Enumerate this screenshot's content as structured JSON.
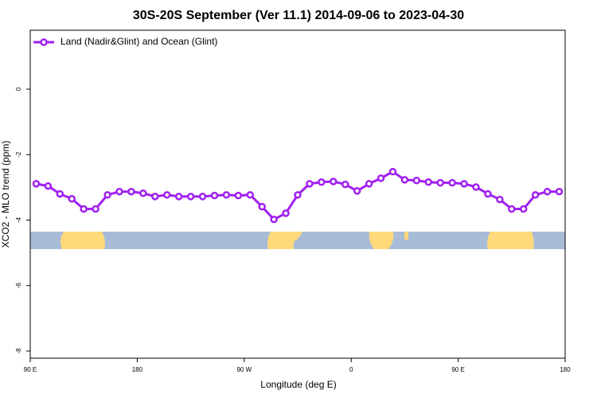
{
  "chart_data": {
    "type": "line",
    "title": "30S-20S September (Ver 11.1)   2014-09-06 to 2023-04-30",
    "xlabel": "Longitude (deg E)",
    "ylabel": "XCO2 - MLO trend (ppm)",
    "x": [
      95,
      105,
      115,
      125,
      135,
      145,
      155,
      165,
      175,
      185,
      195,
      205,
      215,
      225,
      235,
      245,
      255,
      265,
      275,
      285,
      295,
      305,
      315,
      325,
      335,
      345,
      355,
      365,
      375,
      385,
      395,
      405,
      415,
      425,
      435,
      445,
      455,
      465,
      475,
      485,
      495,
      505,
      515,
      525,
      535
    ],
    "series": [
      {
        "name": "Land (Nadir&Glint) and Ocean (Glint)",
        "color": "#a020f0",
        "values": [
          -2.89,
          -2.96,
          -3.2,
          -3.35,
          -3.66,
          -3.66,
          -3.23,
          -3.13,
          -3.13,
          -3.18,
          -3.28,
          -3.23,
          -3.28,
          -3.28,
          -3.28,
          -3.25,
          -3.23,
          -3.25,
          -3.23,
          -3.59,
          -3.98,
          -3.79,
          -3.23,
          -2.89,
          -2.84,
          -2.82,
          -2.91,
          -3.11,
          -2.89,
          -2.72,
          -2.52,
          -2.77,
          -2.79,
          -2.84,
          -2.86,
          -2.86,
          -2.89,
          -2.99,
          -3.2,
          -3.37,
          -3.66,
          -3.66,
          -3.23,
          -3.13,
          -3.13
        ]
      }
    ],
    "xlim": [
      90,
      540
    ],
    "xticks": [
      {
        "value": 90,
        "label": "90 E"
      },
      180,
      {
        "value": 270,
        "label": "90 W"
      },
      {
        "value": 360,
        "label": "0"
      },
      {
        "value": 450,
        "label": "90 E"
      },
      {
        "value": 540,
        "label": "180"
      }
    ],
    "ylim": [
      -8.22,
      1.8
    ],
    "yticks": [
      0,
      -2,
      -4,
      -6,
      -8
    ],
    "legend": "top-left"
  }
}
